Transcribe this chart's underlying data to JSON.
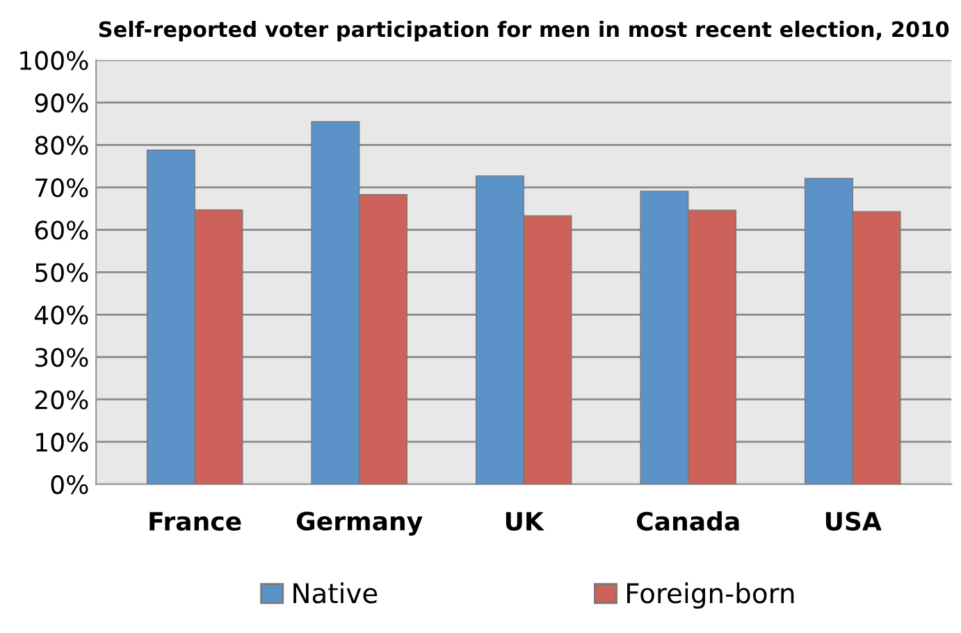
{
  "chart_data": {
    "type": "bar",
    "title": "Self-reported voter participation for men in most recent election, 2010",
    "categories": [
      "France",
      "Germany",
      "UK",
      "Canada",
      "USA"
    ],
    "series": [
      {
        "name": "Native",
        "color": "#5b93c8",
        "values": [
          78.8,
          85.5,
          72.7,
          69.1,
          72.1
        ]
      },
      {
        "name": "Foreign-born",
        "color": "#cc6259",
        "values": [
          64.7,
          68.3,
          63.3,
          64.6,
          64.3
        ]
      }
    ],
    "ylim": [
      0,
      100
    ],
    "yticks": [
      {
        "value": 0,
        "label": "0%"
      },
      {
        "value": 10,
        "label": "10%"
      },
      {
        "value": 20,
        "label": "20%"
      },
      {
        "value": 30,
        "label": "30%"
      },
      {
        "value": 40,
        "label": "40%"
      },
      {
        "value": 50,
        "label": "50%"
      },
      {
        "value": 60,
        "label": "60%"
      },
      {
        "value": 70,
        "label": "70%"
      },
      {
        "value": 80,
        "label": "80%"
      },
      {
        "value": 90,
        "label": "90%"
      },
      {
        "value": 100,
        "label": "100%"
      }
    ],
    "grid": "y",
    "legend": "bottom"
  }
}
